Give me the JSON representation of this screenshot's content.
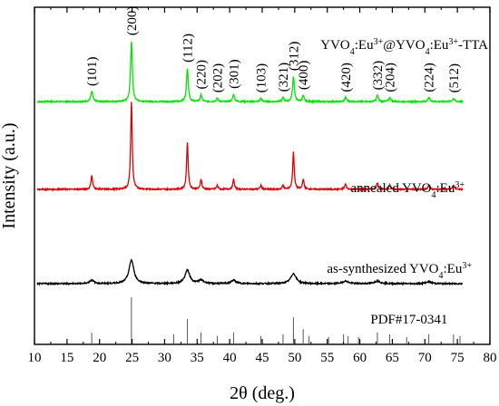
{
  "chart_data": {
    "type": "line",
    "title": "",
    "xlabel": "2θ (deg.)",
    "ylabel": "Intensity (a.u.)",
    "xlim": [
      10,
      80
    ],
    "x_ticks": [
      10,
      15,
      20,
      25,
      30,
      35,
      40,
      45,
      50,
      55,
      60,
      65,
      70,
      75,
      80
    ],
    "grid": false,
    "legend": "none",
    "series": [
      {
        "name": "YVO4:Eu3+@YVO4:Eu3+-TTA",
        "color": "#00e600",
        "baseline": 0.72,
        "noise": 0.002,
        "peaks": [
          {
            "pos": 18.8,
            "h": 0.03,
            "w": 0.18
          },
          {
            "pos": 24.9,
            "h": 0.18,
            "w": 0.16
          },
          {
            "pos": 33.5,
            "h": 0.1,
            "w": 0.16
          },
          {
            "pos": 35.6,
            "h": 0.02,
            "w": 0.16
          },
          {
            "pos": 38.1,
            "h": 0.01,
            "w": 0.16
          },
          {
            "pos": 40.6,
            "h": 0.022,
            "w": 0.16
          },
          {
            "pos": 44.8,
            "h": 0.01,
            "w": 0.16
          },
          {
            "pos": 48.2,
            "h": 0.012,
            "w": 0.16
          },
          {
            "pos": 49.8,
            "h": 0.075,
            "w": 0.16
          },
          {
            "pos": 51.3,
            "h": 0.018,
            "w": 0.16
          },
          {
            "pos": 57.8,
            "h": 0.012,
            "w": 0.18
          },
          {
            "pos": 62.7,
            "h": 0.018,
            "w": 0.18
          },
          {
            "pos": 64.6,
            "h": 0.012,
            "w": 0.18
          },
          {
            "pos": 70.6,
            "h": 0.012,
            "w": 0.18
          },
          {
            "pos": 74.4,
            "h": 0.01,
            "w": 0.18
          }
        ]
      },
      {
        "name": "annealed YVO4:Eu3+",
        "color": "#e00000",
        "baseline": 0.46,
        "noise": 0.002,
        "peaks": [
          {
            "pos": 18.8,
            "h": 0.04,
            "w": 0.15
          },
          {
            "pos": 24.9,
            "h": 0.26,
            "w": 0.14
          },
          {
            "pos": 33.5,
            "h": 0.14,
            "w": 0.14
          },
          {
            "pos": 35.6,
            "h": 0.03,
            "w": 0.14
          },
          {
            "pos": 38.1,
            "h": 0.012,
            "w": 0.14
          },
          {
            "pos": 40.6,
            "h": 0.03,
            "w": 0.14
          },
          {
            "pos": 44.8,
            "h": 0.012,
            "w": 0.14
          },
          {
            "pos": 48.2,
            "h": 0.012,
            "w": 0.14
          },
          {
            "pos": 49.8,
            "h": 0.11,
            "w": 0.14
          },
          {
            "pos": 51.3,
            "h": 0.03,
            "w": 0.14
          },
          {
            "pos": 57.8,
            "h": 0.015,
            "w": 0.16
          },
          {
            "pos": 62.7,
            "h": 0.02,
            "w": 0.16
          },
          {
            "pos": 64.6,
            "h": 0.014,
            "w": 0.16
          },
          {
            "pos": 70.6,
            "h": 0.012,
            "w": 0.16
          },
          {
            "pos": 74.4,
            "h": 0.012,
            "w": 0.16
          }
        ]
      },
      {
        "name": "as-synthesized YVO4:Eu3+",
        "color": "#000000",
        "baseline": 0.18,
        "noise": 0.002,
        "peaks": [
          {
            "pos": 18.8,
            "h": 0.01,
            "w": 0.4
          },
          {
            "pos": 24.9,
            "h": 0.07,
            "w": 0.45
          },
          {
            "pos": 33.5,
            "h": 0.04,
            "w": 0.45
          },
          {
            "pos": 35.6,
            "h": 0.01,
            "w": 0.45
          },
          {
            "pos": 40.6,
            "h": 0.01,
            "w": 0.45
          },
          {
            "pos": 49.8,
            "h": 0.03,
            "w": 0.5
          },
          {
            "pos": 57.8,
            "h": 0.008,
            "w": 0.5
          },
          {
            "pos": 62.7,
            "h": 0.008,
            "w": 0.5
          },
          {
            "pos": 70.6,
            "h": 0.006,
            "w": 0.5
          }
        ]
      }
    ],
    "reference": {
      "label": "PDF#17-0341",
      "color": "#555555",
      "baseline": 0.0,
      "lines": [
        {
          "pos": 18.8,
          "h": 0.035
        },
        {
          "pos": 24.9,
          "h": 0.14
        },
        {
          "pos": 31.4,
          "h": 0.03
        },
        {
          "pos": 33.5,
          "h": 0.075
        },
        {
          "pos": 35.6,
          "h": 0.035
        },
        {
          "pos": 38.1,
          "h": 0.025
        },
        {
          "pos": 40.6,
          "h": 0.035
        },
        {
          "pos": 44.8,
          "h": 0.025
        },
        {
          "pos": 48.2,
          "h": 0.03
        },
        {
          "pos": 49.8,
          "h": 0.08
        },
        {
          "pos": 51.3,
          "h": 0.045
        },
        {
          "pos": 52.2,
          "h": 0.025
        },
        {
          "pos": 55.2,
          "h": 0.022
        },
        {
          "pos": 57.5,
          "h": 0.03
        },
        {
          "pos": 58.2,
          "h": 0.025
        },
        {
          "pos": 59.8,
          "h": 0.022
        },
        {
          "pos": 62.7,
          "h": 0.035
        },
        {
          "pos": 64.6,
          "h": 0.03
        },
        {
          "pos": 67.2,
          "h": 0.022
        },
        {
          "pos": 70.6,
          "h": 0.03
        },
        {
          "pos": 74.4,
          "h": 0.03
        },
        {
          "pos": 75.4,
          "h": 0.025
        }
      ]
    },
    "annotations": {
      "miller_indices": [
        {
          "label": "(101)",
          "x": 18.8
        },
        {
          "label": "(200)",
          "x": 24.9
        },
        {
          "label": "(112)",
          "x": 33.5
        },
        {
          "label": "(220)",
          "x": 35.6
        },
        {
          "label": "(202)",
          "x": 38.1
        },
        {
          "label": "(301)",
          "x": 40.6
        },
        {
          "label": "(103)",
          "x": 44.8
        },
        {
          "label": "(321)",
          "x": 48.2
        },
        {
          "label": "(312)",
          "x": 49.8
        },
        {
          "label": "(400)",
          "x": 51.3
        },
        {
          "label": "(420)",
          "x": 57.8
        },
        {
          "label": "(332)",
          "x": 62.7
        },
        {
          "label": "(204)",
          "x": 64.6
        },
        {
          "label": "(224)",
          "x": 70.6
        },
        {
          "label": "(512)",
          "x": 74.4
        }
      ],
      "series_labels": [
        {
          "text": "YVO4:Eu3+@YVO4:Eu3+-TTA",
          "series": 0
        },
        {
          "text": "annealed YVO4:Eu3+",
          "series": 1
        },
        {
          "text": "as-synthesized YVO4:Eu3+",
          "series": 2
        }
      ]
    }
  }
}
